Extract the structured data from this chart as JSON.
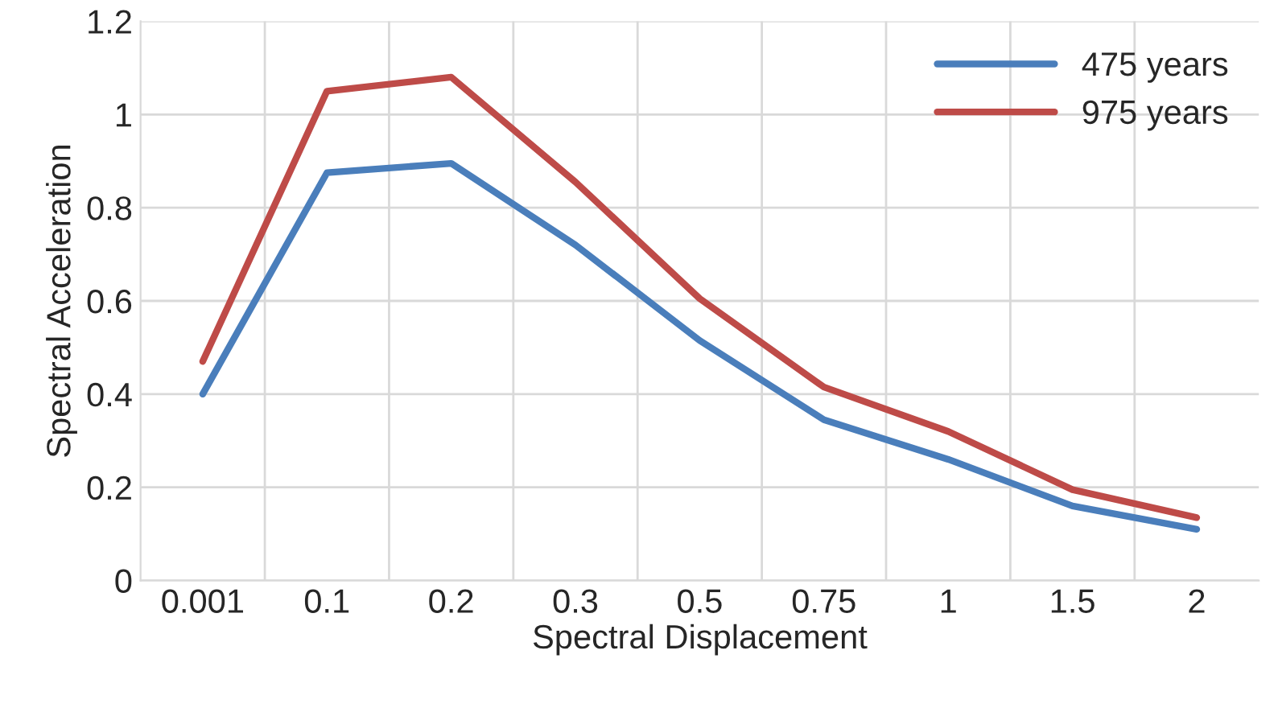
{
  "chart_data": {
    "type": "line",
    "xlabel": "Spectral Displacement",
    "ylabel": "Spectral Acceleration",
    "categories": [
      "0.001",
      "0.1",
      "0.2",
      "0.3",
      "0.5",
      "0.75",
      "1",
      "1.5",
      "2"
    ],
    "series": [
      {
        "name": "475 years",
        "color": "#4a7ebb",
        "values": [
          0.4,
          0.875,
          0.895,
          0.72,
          0.515,
          0.345,
          0.26,
          0.16,
          0.11
        ]
      },
      {
        "name": "975 years",
        "color": "#be4b48",
        "values": [
          0.47,
          1.05,
          1.08,
          0.855,
          0.605,
          0.415,
          0.32,
          0.195,
          0.135
        ]
      }
    ],
    "ylim": [
      0,
      1.2
    ],
    "yticks": [
      0,
      0.2,
      0.4,
      0.6,
      0.8,
      1,
      1.2
    ],
    "grid": true,
    "legend": "top right",
    "marker": "none",
    "line_style": "solid"
  }
}
